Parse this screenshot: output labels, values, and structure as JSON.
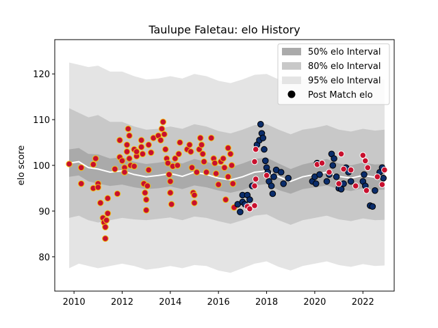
{
  "chart_data": {
    "type": "scatter",
    "title": "Taulupe Faletau: elo History",
    "xlabel": "",
    "ylabel": "elo score",
    "xlim": [
      2009.2,
      2023.3
    ],
    "ylim": [
      72.5,
      127.5
    ],
    "xticks": [
      2010,
      2012,
      2014,
      2016,
      2018,
      2020,
      2022
    ],
    "yticks": [
      80,
      90,
      100,
      110,
      120
    ],
    "grid": false,
    "legend_position": "top-right",
    "legend": [
      {
        "label": "50% elo Interval",
        "color": "#aaaaaa"
      },
      {
        "label": "80% elo Interval",
        "color": "#c8c8c8"
      },
      {
        "label": "95% elo Interval",
        "color": "#e4e4e4"
      },
      {
        "label": "Post Match elo",
        "color": "#000000"
      }
    ],
    "mean_line": {
      "x": [
        2009.8,
        2010.2,
        2010.6,
        2011.0,
        2011.5,
        2012.0,
        2012.5,
        2013.0,
        2013.5,
        2014.0,
        2014.5,
        2015.0,
        2015.5,
        2016.0,
        2016.5,
        2017.0,
        2017.5,
        2018.0,
        2018.5,
        2019.0,
        2019.5,
        2020.0,
        2020.5,
        2021.0,
        2021.5,
        2022.0,
        2022.5,
        2022.9
      ],
      "y": [
        100.5,
        100.8,
        99.5,
        99.2,
        98.5,
        98.8,
        98.0,
        97.5,
        97.8,
        98.2,
        97.6,
        98.5,
        98.0,
        97.2,
        96.8,
        97.5,
        98.5,
        98.8,
        97.5,
        96.5,
        97.5,
        98.0,
        98.5,
        97.6,
        97.2,
        97.8,
        97.4,
        97.5
      ]
    },
    "band50": {
      "lower": [
        97.5,
        97.8,
        96.5,
        96.0,
        95.5,
        95.8,
        95.2,
        94.8,
        95.0,
        95.4,
        94.8,
        95.6,
        95.2,
        94.5,
        94.0,
        94.6,
        95.6,
        95.9,
        94.6,
        93.8,
        94.8,
        95.2,
        95.6,
        94.8,
        94.4,
        95.0,
        94.6,
        94.7
      ],
      "upper": [
        103.5,
        103.8,
        102.5,
        102.4,
        101.5,
        101.8,
        100.8,
        100.3,
        100.6,
        101.0,
        100.4,
        101.4,
        100.8,
        99.9,
        99.6,
        100.4,
        101.4,
        101.7,
        100.4,
        99.2,
        100.2,
        100.8,
        101.4,
        100.4,
        100.0,
        100.6,
        100.2,
        100.3
      ]
    },
    "band80": {
      "lower": [
        88.5,
        89.0,
        88.0,
        87.5,
        88.0,
        88.5,
        88.2,
        88.0,
        88.3,
        88.6,
        88.0,
        88.8,
        88.5,
        87.8,
        87.2,
        88.0,
        89.0,
        89.3,
        88.0,
        87.0,
        88.0,
        88.5,
        89.0,
        88.2,
        87.8,
        88.4,
        88.0,
        88.1
      ],
      "upper": [
        112.5,
        111.5,
        110.5,
        111.0,
        109.5,
        109.5,
        108.5,
        107.8,
        108.0,
        108.5,
        108.0,
        109.0,
        108.5,
        107.5,
        107.0,
        107.8,
        108.8,
        109.0,
        107.8,
        106.8,
        107.8,
        108.2,
        108.8,
        107.8,
        107.4,
        108.0,
        107.6,
        107.8
      ]
    },
    "band95": {
      "lower": [
        77.5,
        78.5,
        78.0,
        77.5,
        78.0,
        78.5,
        78.0,
        77.2,
        77.5,
        78.0,
        77.5,
        78.2,
        78.0,
        77.0,
        76.5,
        77.5,
        78.5,
        79.0,
        77.8,
        77.0,
        78.0,
        78.5,
        79.0,
        78.2,
        77.8,
        78.4,
        78.0,
        78.1
      ],
      "upper": [
        122.5,
        122.0,
        121.5,
        121.8,
        120.5,
        120.5,
        119.5,
        118.8,
        119.0,
        119.5,
        119.0,
        120.0,
        119.5,
        118.5,
        118.0,
        118.8,
        119.8,
        120.0,
        118.8,
        117.8,
        118.8,
        119.2,
        119.8,
        118.8,
        118.4,
        119.0,
        118.6,
        118.8
      ]
    },
    "series": [
      {
        "marker_style": "red-fill-yellow-edge",
        "fill": "#c8102e",
        "edge": "#f1c40f",
        "points": [
          [
            2009.8,
            100.3
          ],
          [
            2010.3,
            96.0
          ],
          [
            2010.3,
            99.5
          ],
          [
            2010.8,
            100.2
          ],
          [
            2010.8,
            95.0
          ],
          [
            2010.9,
            101.5
          ],
          [
            2011.0,
            96.0
          ],
          [
            2011.0,
            95.2
          ],
          [
            2011.1,
            91.8
          ],
          [
            2011.2,
            88.5
          ],
          [
            2011.25,
            87.5
          ],
          [
            2011.3,
            84.0
          ],
          [
            2011.3,
            86.5
          ],
          [
            2011.35,
            88.0
          ],
          [
            2011.4,
            89.5
          ],
          [
            2011.4,
            92.8
          ],
          [
            2011.7,
            99.2
          ],
          [
            2011.8,
            93.8
          ],
          [
            2011.9,
            105.5
          ],
          [
            2011.9,
            101.8
          ],
          [
            2012.0,
            101.0
          ],
          [
            2012.1,
            99.5
          ],
          [
            2012.1,
            98.5
          ],
          [
            2012.2,
            103.0
          ],
          [
            2012.2,
            104.5
          ],
          [
            2012.25,
            108.0
          ],
          [
            2012.3,
            106.5
          ],
          [
            2012.3,
            101.5
          ],
          [
            2012.35,
            100.0
          ],
          [
            2012.5,
            103.5
          ],
          [
            2012.5,
            99.8
          ],
          [
            2012.6,
            102.0
          ],
          [
            2012.6,
            103.0
          ],
          [
            2012.8,
            105.5
          ],
          [
            2012.8,
            104.0
          ],
          [
            2012.85,
            102.5
          ],
          [
            2012.9,
            96.0
          ],
          [
            2012.95,
            94.0
          ],
          [
            2013.0,
            90.2
          ],
          [
            2013.0,
            92.5
          ],
          [
            2013.05,
            95.5
          ],
          [
            2013.1,
            99.0
          ],
          [
            2013.1,
            104.5
          ],
          [
            2013.2,
            102.8
          ],
          [
            2013.3,
            106.0
          ],
          [
            2013.5,
            106.5
          ],
          [
            2013.6,
            105.5
          ],
          [
            2013.65,
            108.0
          ],
          [
            2013.7,
            109.5
          ],
          [
            2013.75,
            106.8
          ],
          [
            2013.8,
            103.5
          ],
          [
            2013.85,
            101.5
          ],
          [
            2013.9,
            100.5
          ],
          [
            2013.95,
            98.0
          ],
          [
            2014.0,
            96.5
          ],
          [
            2014.0,
            94.0
          ],
          [
            2014.05,
            91.5
          ],
          [
            2014.1,
            99.8
          ],
          [
            2014.2,
            101.5
          ],
          [
            2014.3,
            100.0
          ],
          [
            2014.35,
            102.5
          ],
          [
            2014.4,
            105.0
          ],
          [
            2014.7,
            103.5
          ],
          [
            2014.8,
            104.5
          ],
          [
            2014.85,
            103.0
          ],
          [
            2014.9,
            99.5
          ],
          [
            2014.95,
            94.0
          ],
          [
            2015.0,
            91.8
          ],
          [
            2015.0,
            93.5
          ],
          [
            2015.1,
            98.5
          ],
          [
            2015.2,
            103.5
          ],
          [
            2015.25,
            106.0
          ],
          [
            2015.3,
            104.5
          ],
          [
            2015.35,
            102.5
          ],
          [
            2015.4,
            100.8
          ],
          [
            2015.5,
            98.5
          ],
          [
            2015.7,
            106.0
          ],
          [
            2015.8,
            101.5
          ],
          [
            2015.85,
            100.5
          ],
          [
            2015.9,
            98.2
          ],
          [
            2016.0,
            95.8
          ],
          [
            2016.1,
            100.8
          ],
          [
            2016.2,
            101.5
          ],
          [
            2016.25,
            99.5
          ],
          [
            2016.3,
            92.5
          ],
          [
            2016.4,
            97.5
          ],
          [
            2016.4,
            103.8
          ],
          [
            2016.5,
            102.5
          ],
          [
            2016.55,
            100.0
          ],
          [
            2016.6,
            96.0
          ],
          [
            2016.65,
            90.8
          ]
        ]
      },
      {
        "marker_style": "navy-fill",
        "fill": "#0b2d6b",
        "edge": "#000000",
        "points": [
          [
            2016.8,
            91.5
          ],
          [
            2016.9,
            89.8
          ],
          [
            2017.0,
            93.5
          ],
          [
            2017.0,
            92.0
          ],
          [
            2017.1,
            91.5
          ],
          [
            2017.2,
            93.5
          ],
          [
            2017.3,
            92.5
          ],
          [
            2017.4,
            95.5
          ],
          [
            2017.6,
            104.5
          ],
          [
            2017.7,
            105.5
          ],
          [
            2017.75,
            109.0
          ],
          [
            2017.8,
            107.0
          ],
          [
            2017.85,
            106.0
          ],
          [
            2017.9,
            103.5
          ],
          [
            2017.95,
            101.0
          ],
          [
            2018.0,
            99.5
          ],
          [
            2018.05,
            98.5
          ],
          [
            2018.1,
            96.5
          ],
          [
            2018.2,
            95.5
          ],
          [
            2018.25,
            93.8
          ],
          [
            2018.3,
            97.5
          ],
          [
            2018.4,
            99.0
          ],
          [
            2018.6,
            98.5
          ],
          [
            2018.7,
            96.0
          ],
          [
            2018.9,
            97.2
          ],
          [
            2019.9,
            96.5
          ],
          [
            2020.0,
            97.5
          ],
          [
            2020.05,
            96.0
          ],
          [
            2020.1,
            100.5
          ],
          [
            2020.2,
            98.0
          ],
          [
            2020.5,
            96.5
          ],
          [
            2020.6,
            98.0
          ],
          [
            2020.7,
            102.5
          ],
          [
            2020.75,
            100.0
          ],
          [
            2020.8,
            101.5
          ],
          [
            2020.9,
            97.5
          ],
          [
            2021.0,
            95.0
          ],
          [
            2021.1,
            94.8
          ],
          [
            2021.2,
            96.0
          ],
          [
            2021.3,
            99.5
          ],
          [
            2021.4,
            98.5
          ],
          [
            2021.5,
            96.5
          ],
          [
            2022.0,
            96.5
          ],
          [
            2022.05,
            98.0
          ],
          [
            2022.1,
            95.5
          ],
          [
            2022.3,
            91.2
          ],
          [
            2022.4,
            91.0
          ],
          [
            2022.5,
            94.5
          ],
          [
            2022.7,
            98.5
          ],
          [
            2022.8,
            99.5
          ],
          [
            2022.85,
            97.2
          ]
        ]
      },
      {
        "marker_style": "red-fill-white-edge",
        "fill": "#c8102e",
        "edge": "#ffffff",
        "points": [
          [
            2017.2,
            91.0
          ],
          [
            2017.3,
            90.5
          ],
          [
            2017.5,
            91.2
          ],
          [
            2017.5,
            95.5
          ],
          [
            2017.55,
            97.0
          ],
          [
            2017.5,
            100.8
          ],
          [
            2017.55,
            103.5
          ],
          [
            2018.0,
            97.8
          ],
          [
            2020.1,
            100.2
          ],
          [
            2020.3,
            100.5
          ],
          [
            2020.6,
            98.5
          ],
          [
            2021.0,
            96.0
          ],
          [
            2021.1,
            102.5
          ],
          [
            2021.2,
            99.2
          ],
          [
            2021.5,
            99.0
          ],
          [
            2021.7,
            95.5
          ],
          [
            2022.0,
            102.2
          ],
          [
            2022.1,
            101.0
          ],
          [
            2022.15,
            94.5
          ],
          [
            2022.2,
            99.5
          ],
          [
            2022.6,
            97.5
          ],
          [
            2022.8,
            95.8
          ],
          [
            2022.9,
            99.0
          ]
        ]
      }
    ]
  }
}
